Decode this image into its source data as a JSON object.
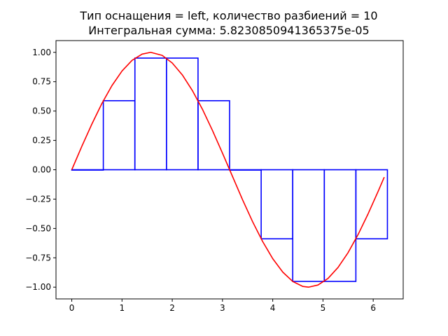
{
  "chart_data": {
    "type": "line",
    "title": "Тип оснащения = left, количество разбиений = 10",
    "subtitle": "Интегральная сумма: 5.8230850941365375e-05",
    "xlabel": "",
    "ylabel": "",
    "xlim": [
      -0.314,
      6.597
    ],
    "ylim": [
      -1.1,
      1.1
    ],
    "grid": false,
    "x_ticks": [
      0,
      1,
      2,
      3,
      4,
      5,
      6
    ],
    "x_tick_labels": [
      "0",
      "1",
      "2",
      "3",
      "4",
      "5",
      "6"
    ],
    "y_ticks": [
      1.0,
      0.75,
      0.5,
      0.25,
      0.0,
      -0.25,
      -0.5,
      -0.75,
      -1.0
    ],
    "y_tick_labels": [
      "1.00",
      "0.75",
      "0.50",
      "0.25",
      "0.00",
      "−0.25",
      "−0.50",
      "−0.75",
      "−1.00"
    ],
    "series": [
      {
        "kind": "line",
        "color": "#ff0000",
        "x": [
          0,
          0.2,
          0.4,
          0.6,
          0.8,
          1.0,
          1.2,
          1.4,
          1.571,
          1.8,
          2.0,
          2.2,
          2.4,
          2.6,
          2.8,
          3.0,
          3.142,
          3.4,
          3.6,
          3.8,
          4.0,
          4.2,
          4.4,
          4.6,
          4.712,
          4.9,
          5.1,
          5.3,
          5.5,
          5.7,
          5.9,
          6.1,
          6.22
        ],
        "y": [
          0,
          0.199,
          0.389,
          0.565,
          0.717,
          0.841,
          0.932,
          0.985,
          1.0,
          0.974,
          0.909,
          0.808,
          0.675,
          0.516,
          0.335,
          0.141,
          0,
          -0.256,
          -0.443,
          -0.612,
          -0.757,
          -0.872,
          -0.952,
          -0.994,
          -1.0,
          -0.982,
          -0.926,
          -0.832,
          -0.706,
          -0.551,
          -0.374,
          -0.182,
          -0.063
        ]
      },
      {
        "kind": "rectangles",
        "color": "#0000ff",
        "left_edges": [
          0,
          0.628,
          1.257,
          1.885,
          2.513,
          3.142,
          3.77,
          4.398,
          5.027,
          5.655
        ],
        "width": 0.628,
        "heights": [
          0,
          0.588,
          0.951,
          0.951,
          0.588,
          0,
          -0.588,
          -0.951,
          -0.951,
          -0.588
        ]
      }
    ]
  }
}
